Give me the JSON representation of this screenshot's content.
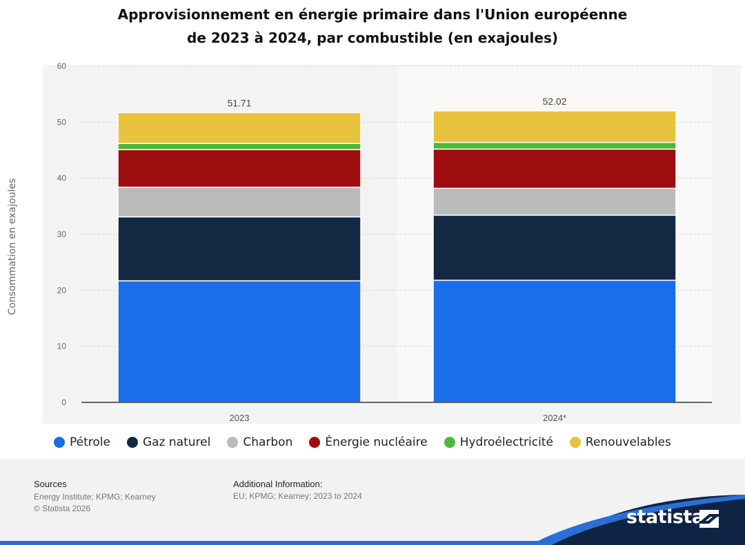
{
  "title_line1": "Approvisionnement en énergie primaire dans l'Union européenne",
  "title_line2": "de 2023 à 2024, par combustible (en exajoules)",
  "chart_data": {
    "type": "bar",
    "stacked": true,
    "categories": [
      "2023",
      "2024*"
    ],
    "ylabel": "Consommation en exajoules",
    "xlabel": "",
    "ylim": [
      0,
      60
    ],
    "yticks": [
      0,
      10,
      20,
      30,
      40,
      50,
      60
    ],
    "grid": true,
    "legend_position": "bottom",
    "totals": [
      "51.71",
      "52.02"
    ],
    "series": [
      {
        "name": "Pétrole",
        "color": "#1a6ee8",
        "values": [
          21.7,
          21.8
        ]
      },
      {
        "name": "Gaz naturel",
        "color": "#132843",
        "values": [
          11.4,
          11.6
        ]
      },
      {
        "name": "Charbon",
        "color": "#bbbbbb",
        "values": [
          5.3,
          4.8
        ]
      },
      {
        "name": "Énergie nucléaire",
        "color": "#9e0d10",
        "values": [
          6.7,
          7.0
        ]
      },
      {
        "name": "Hydroélectricité",
        "color": "#4db836",
        "values": [
          1.1,
          1.2
        ]
      },
      {
        "name": "Renouvelables",
        "color": "#e9c23d",
        "values": [
          5.51,
          5.62
        ]
      }
    ]
  },
  "footer": {
    "sources_heading": "Sources",
    "sources_line1": "Energy Institute; KPMG; Kearney",
    "sources_line2": "© Statista 2026",
    "additional_heading": "Additional Information:",
    "additional_text": "EU; KPMG; Kearney; 2023 to 2024",
    "brand": "statista"
  }
}
